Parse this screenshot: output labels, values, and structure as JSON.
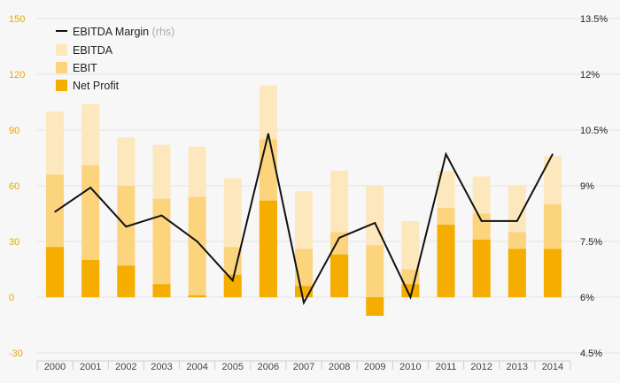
{
  "chart_data": {
    "type": "bar",
    "categories": [
      "2000",
      "2001",
      "2002",
      "2003",
      "2004",
      "2005",
      "2006",
      "2007",
      "2008",
      "2009",
      "2010",
      "2011",
      "2012",
      "2013",
      "2014"
    ],
    "series": [
      {
        "name": "EBITDA",
        "kind": "bar",
        "axis": "left",
        "color": "#fde8bd",
        "values": [
          100,
          104,
          86,
          82,
          81,
          64,
          114,
          57,
          68,
          60,
          41,
          68,
          65,
          60,
          76
        ]
      },
      {
        "name": "EBIT",
        "kind": "bar",
        "axis": "left",
        "color": "#fcd47e",
        "values": [
          66,
          71,
          60,
          53,
          54,
          27,
          85,
          26,
          35,
          28,
          15,
          48,
          45,
          35,
          50
        ]
      },
      {
        "name": "Net Profit",
        "kind": "bar",
        "axis": "left",
        "color": "#f5ad00",
        "values": [
          27,
          20,
          17,
          7,
          1,
          12,
          52,
          6,
          23,
          -10,
          7,
          39,
          31,
          26,
          26
        ]
      },
      {
        "name": "EBITDA Margin",
        "kind": "line",
        "axis": "right",
        "color": "#111111",
        "values": [
          8.3,
          8.95,
          7.9,
          8.2,
          7.5,
          6.45,
          10.4,
          5.85,
          7.6,
          8.0,
          6.0,
          9.85,
          8.05,
          8.05,
          9.85
        ]
      }
    ],
    "legend": {
      "position": "top-left",
      "items": [
        {
          "label": "EBITDA Margin",
          "suffix": "(rhs)",
          "color": "#111111",
          "shape": "line"
        },
        {
          "label": "EBITDA",
          "color": "#fde8bd",
          "shape": "square"
        },
        {
          "label": "EBIT",
          "color": "#fcd47e",
          "shape": "square"
        },
        {
          "label": "Net Profit",
          "color": "#f5ad00",
          "shape": "square"
        }
      ]
    },
    "y_left": {
      "ylim": [
        -30,
        150
      ],
      "ticks": [
        "150",
        "120",
        "90",
        "60",
        "30",
        "0",
        "-30"
      ],
      "tick_color": "#e8a800"
    },
    "y_right": {
      "ylim": [
        4.5,
        13.5
      ],
      "ticks": [
        "13.5%",
        "12%",
        "10.5%",
        "9%",
        "7.5%",
        "6%",
        "4.5%"
      ]
    },
    "grid": true
  }
}
